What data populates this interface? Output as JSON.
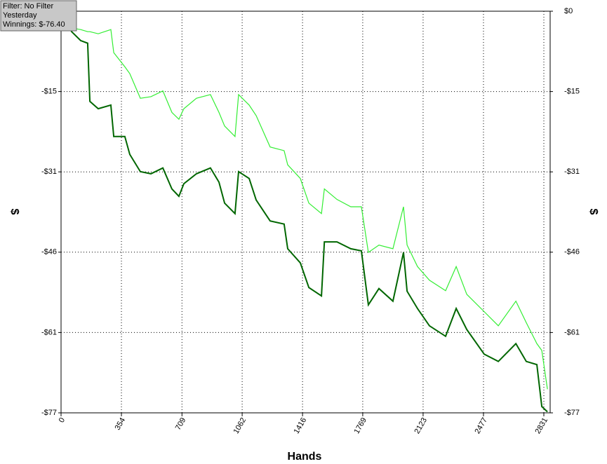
{
  "chart_data": {
    "type": "line",
    "annotations": [
      "Filter: No Filter",
      "Yesterday",
      "Winnings: $-76.40"
    ],
    "xlabel": "Hands",
    "ylabel": "$",
    "y2label": "$",
    "x": [
      0,
      62,
      115,
      156,
      169,
      218,
      292,
      309,
      374,
      403,
      465,
      527,
      597,
      650,
      691,
      720,
      794,
      876,
      926,
      959,
      1020,
      1041,
      1103,
      1144,
      1226,
      1308,
      1329,
      1403,
      1453,
      1527,
      1544,
      1618,
      1699,
      1761,
      1802,
      1864,
      1946,
      2008,
      2029,
      2090,
      2160,
      2255,
      2317,
      2379,
      2481,
      2564,
      2667,
      2728,
      2790,
      2819,
      2852
    ],
    "series": [
      {
        "color": "#33ee33",
        "values": [
          0,
          -3.2,
          -3.5,
          -3.9,
          -3.9,
          -4.3,
          -3.5,
          -7.9,
          -10.6,
          -11.9,
          -16.6,
          -16.3,
          -15.2,
          -19.3,
          -20.6,
          -18.6,
          -16.6,
          -15.9,
          -19.3,
          -21.9,
          -23.9,
          -15.9,
          -17.9,
          -19.9,
          -25.9,
          -26.6,
          -29.3,
          -31.9,
          -36.6,
          -38.6,
          -33.9,
          -35.9,
          -37.3,
          -37.3,
          -46.0,
          -44.6,
          -45.3,
          -37.3,
          -44.6,
          -48.7,
          -51.3,
          -53.3,
          -48.7,
          -54.0,
          -57.3,
          -60.0,
          -55.3,
          -59.4,
          -63.4,
          -64.7,
          -72.1
        ]
      },
      {
        "color": "#006600",
        "values": [
          0,
          -3.9,
          -5.6,
          -6.1,
          -17.2,
          -18.6,
          -17.9,
          -23.9,
          -23.9,
          -27.3,
          -30.6,
          -31.0,
          -29.9,
          -33.9,
          -35.3,
          -32.9,
          -31.0,
          -29.9,
          -32.6,
          -36.6,
          -38.6,
          -30.6,
          -31.9,
          -36.0,
          -40.0,
          -40.6,
          -45.3,
          -48.0,
          -52.7,
          -54.3,
          -44.0,
          -44.0,
          -45.3,
          -45.7,
          -56.0,
          -52.9,
          -55.3,
          -46.0,
          -53.4,
          -56.7,
          -60.0,
          -62.0,
          -56.7,
          -60.7,
          -65.4,
          -66.8,
          -63.4,
          -66.8,
          -67.4,
          -75.4,
          -76.4
        ]
      }
    ],
    "xlim": [
      0,
      2868
    ],
    "xticks": [
      0,
      354,
      709,
      1062,
      1416,
      1769,
      2123,
      2477,
      2831
    ],
    "ylim": [
      -76.6,
      0
    ],
    "yticks": [
      {
        "value": 0,
        "label": "$0"
      },
      {
        "value": -15.32,
        "label": "-$15"
      },
      {
        "value": -30.64,
        "label": "-$31"
      },
      {
        "value": -45.96,
        "label": "-$46"
      },
      {
        "value": -61.28,
        "label": "-$61"
      },
      {
        "value": -76.6,
        "label": "-$77"
      }
    ],
    "grid": true
  }
}
